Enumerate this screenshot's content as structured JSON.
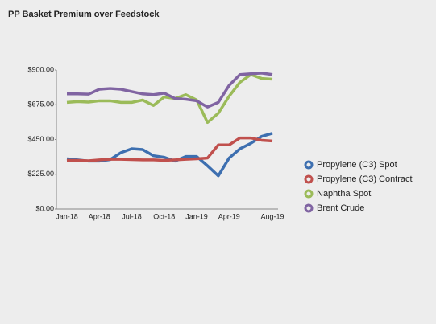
{
  "chart_data": {
    "type": "line",
    "title": "PP Basket Premium over Feedstock",
    "categories": [
      "Jan-18",
      null,
      null,
      "Apr-18",
      null,
      null,
      "Jul-18",
      null,
      null,
      "Oct-18",
      null,
      null,
      "Jan-19",
      null,
      null,
      "Apr-19",
      null,
      null,
      null,
      "Aug-19"
    ],
    "series": [
      {
        "name": "Propylene (C3) Spot",
        "color": "#3d6fb0",
        "values": [
          325,
          318,
          310,
          310,
          320,
          365,
          390,
          385,
          345,
          335,
          310,
          340,
          340,
          280,
          215,
          330,
          390,
          425,
          470,
          490
        ]
      },
      {
        "name": "Propylene (C3) Contract",
        "color": "#c0504d",
        "values": [
          315,
          315,
          312,
          318,
          322,
          322,
          320,
          318,
          318,
          315,
          318,
          322,
          325,
          330,
          415,
          415,
          460,
          460,
          445,
          440
        ]
      },
      {
        "name": "Naphtha Spot",
        "color": "#9bbb59",
        "values": [
          690,
          695,
          692,
          700,
          700,
          690,
          690,
          705,
          670,
          725,
          715,
          740,
          705,
          560,
          620,
          730,
          820,
          870,
          845,
          840
        ]
      },
      {
        "name": "Brent Crude",
        "color": "#8064a2",
        "values": [
          745,
          745,
          743,
          775,
          780,
          775,
          760,
          745,
          740,
          750,
          715,
          710,
          700,
          660,
          690,
          800,
          870,
          875,
          880,
          870
        ]
      }
    ],
    "ylim": [
      0,
      900
    ],
    "yticks": [
      {
        "value": 0,
        "label": "$0.00"
      },
      {
        "value": 225,
        "label": "$225.00"
      },
      {
        "value": 450,
        "label": "$450.00"
      },
      {
        "value": 675,
        "label": "$675.00"
      },
      {
        "value": 900,
        "label": "$900.00"
      }
    ],
    "legend": "right"
  }
}
